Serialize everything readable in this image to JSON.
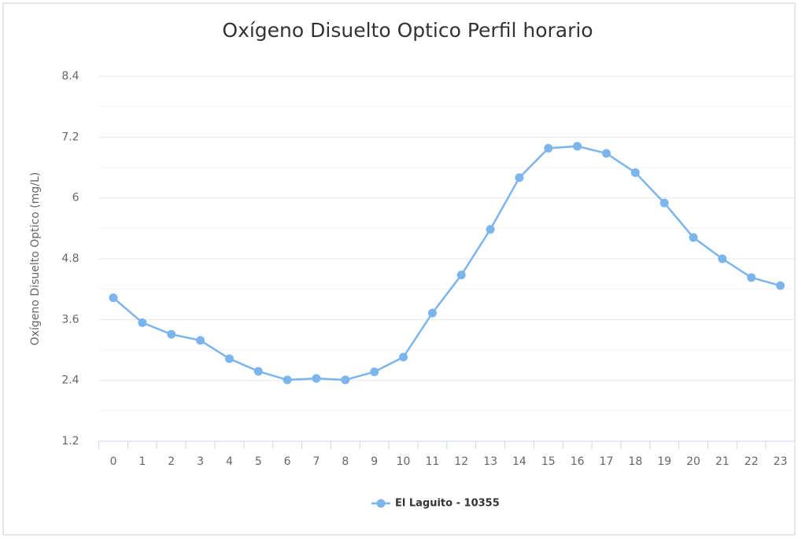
{
  "chart_data": {
    "type": "line",
    "title": "Oxígeno Disuelto Optico Perfil horario",
    "y_label": "Oxígeno Disuelto Optico (mg/L)",
    "categories": [
      "0",
      "1",
      "2",
      "3",
      "4",
      "5",
      "6",
      "7",
      "8",
      "9",
      "10",
      "11",
      "12",
      "13",
      "14",
      "15",
      "16",
      "17",
      "18",
      "19",
      "20",
      "21",
      "22",
      "23"
    ],
    "series": [
      {
        "name": "El Laguito - 10355",
        "color": "#7cb5ec",
        "values": [
          4.03,
          3.54,
          3.31,
          3.19,
          2.83,
          2.58,
          2.41,
          2.44,
          2.41,
          2.57,
          2.86,
          3.73,
          4.48,
          5.38,
          6.4,
          6.98,
          7.02,
          6.88,
          6.5,
          5.9,
          5.22,
          4.8,
          4.43,
          4.27
        ]
      }
    ],
    "ylim": [
      1.2,
      8.4
    ],
    "yticks": [
      1.2,
      2.4,
      3.6,
      4.8,
      6,
      7.2,
      8.4
    ],
    "yminorticks": [
      1.8,
      3.0,
      4.2,
      5.4,
      6.6,
      7.8
    ],
    "grid": true,
    "legend": "bottom"
  }
}
